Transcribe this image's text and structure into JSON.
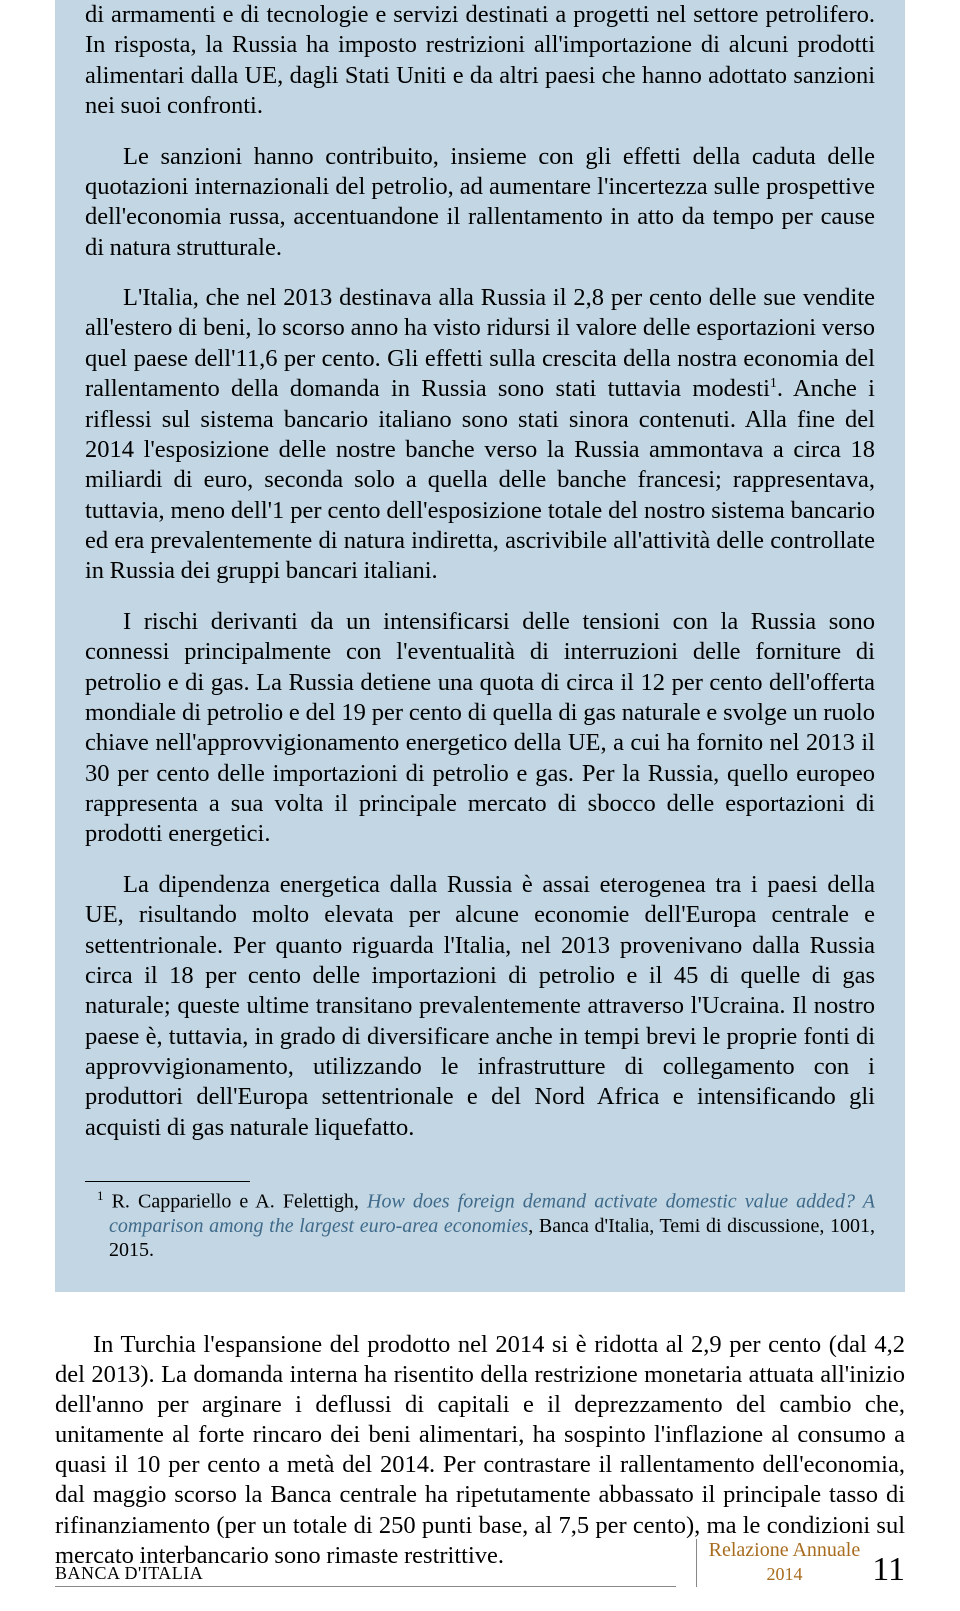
{
  "colors": {
    "box_background": "#c2d6e3",
    "page_background": "#ffffff",
    "text": "#000000",
    "italic_citation": "#3f6a8a",
    "footer_accent": "#a86c1e",
    "rule": "#888888"
  },
  "box": {
    "p1": "di armamenti e di tecnologie e servizi destinati a progetti nel settore petrolifero. In risposta, la Russia ha imposto restrizioni all'importazione di alcuni prodotti alimentari dalla UE, dagli Stati Uniti e da altri paesi che hanno adottato sanzioni nei suoi confronti.",
    "p2": "Le sanzioni hanno contribuito, insieme con gli effetti della caduta delle quotazioni internazionali del petrolio, ad aumentare l'incertezza sulle prospettive dell'economia russa, accentuandone il rallentamento in atto da tempo per cause di natura strutturale.",
    "p3_a": "L'Italia, che nel 2013 destinava alla Russia il 2,8 per cento delle sue vendite all'estero di beni, lo scorso anno ha visto ridursi il valore delle esportazioni verso quel paese dell'11,6 per cento. Gli effetti sulla crescita della nostra economia del rallentamento della domanda in Russia sono stati tuttavia modesti",
    "p3_b": ". Anche i riflessi sul sistema bancario italiano sono stati sinora contenuti. Alla fine del 2014 l'esposizione delle nostre banche verso la Russia ammontava a circa 18 miliardi di euro, seconda solo a quella delle banche francesi; rappresentava, tuttavia, meno dell'1 per cento dell'esposizione totale del nostro sistema bancario ed era prevalentemente di natura indiretta, ascrivibile all'attività delle controllate in Russia dei gruppi bancari italiani.",
    "p4": "I rischi derivanti da un intensificarsi delle tensioni con la Russia sono connessi principalmente con l'eventualità di interruzioni delle forniture di petrolio e di gas. La Russia detiene una quota di circa il 12 per cento dell'offerta mondiale di petrolio e del 19 per cento di quella di gas naturale e svolge un ruolo chiave nell'approvvigionamento energetico della UE, a cui ha fornito nel 2013 il 30 per cento delle importazioni di petrolio e gas. Per la Russia, quello europeo rappresenta a sua volta il principale mercato di sbocco delle esportazioni di prodotti energetici.",
    "p5": "La dipendenza energetica dalla Russia è assai eterogenea tra i paesi della UE, risultando molto elevata per alcune economie dell'Europa centrale e settentrionale. Per quanto riguarda l'Italia, nel 2013 provenivano dalla Russia circa il 18 per cento delle importazioni di petrolio e il 45 di quelle di gas naturale; queste ultime transitano prevalentemente attraverso l'Ucraina. Il nostro paese è, tuttavia, in grado di diversificare anche in tempi brevi le proprie fonti di approvvigionamento, utilizzando le infrastrutture di collegamento con i produttori dell'Europa settentrionale e del Nord Africa e intensificando gli acquisti di gas naturale liquefatto.",
    "footnote_marker": "1",
    "footnote_authors": "R. Cappariello e A. Felettigh, ",
    "footnote_title": "How does foreign demand activate domestic value added? A comparison among the largest euro-area economies",
    "footnote_tail": ", Banca d'Italia, Temi di discussione, 1001, 2015."
  },
  "body": {
    "p1": "In Turchia l'espansione del prodotto nel 2014 si è ridotta al 2,9 per cento (dal 4,2 del 2013). La domanda interna ha risentito della restrizione monetaria attuata all'inizio dell'anno per arginare i deflussi di capitali e il deprezzamento del cambio che, unitamente al forte rincaro dei beni alimentari, ha sospinto l'inflazione al consumo a quasi il 10 per cento a metà del 2014. Per contrastare il rallentamento dell'economia, dal maggio scorso la Banca centrale ha ripetutamente abbassato il principale tasso di rifinanziamento (per un totale di 250 punti base, al 7,5 per cento), ma le condizioni sul mercato interbancario sono rimaste restrittive."
  },
  "footer": {
    "left": "BANCA D'ITALIA",
    "report_title": "Relazione Annuale",
    "report_year": "2014",
    "page_number": "11"
  }
}
